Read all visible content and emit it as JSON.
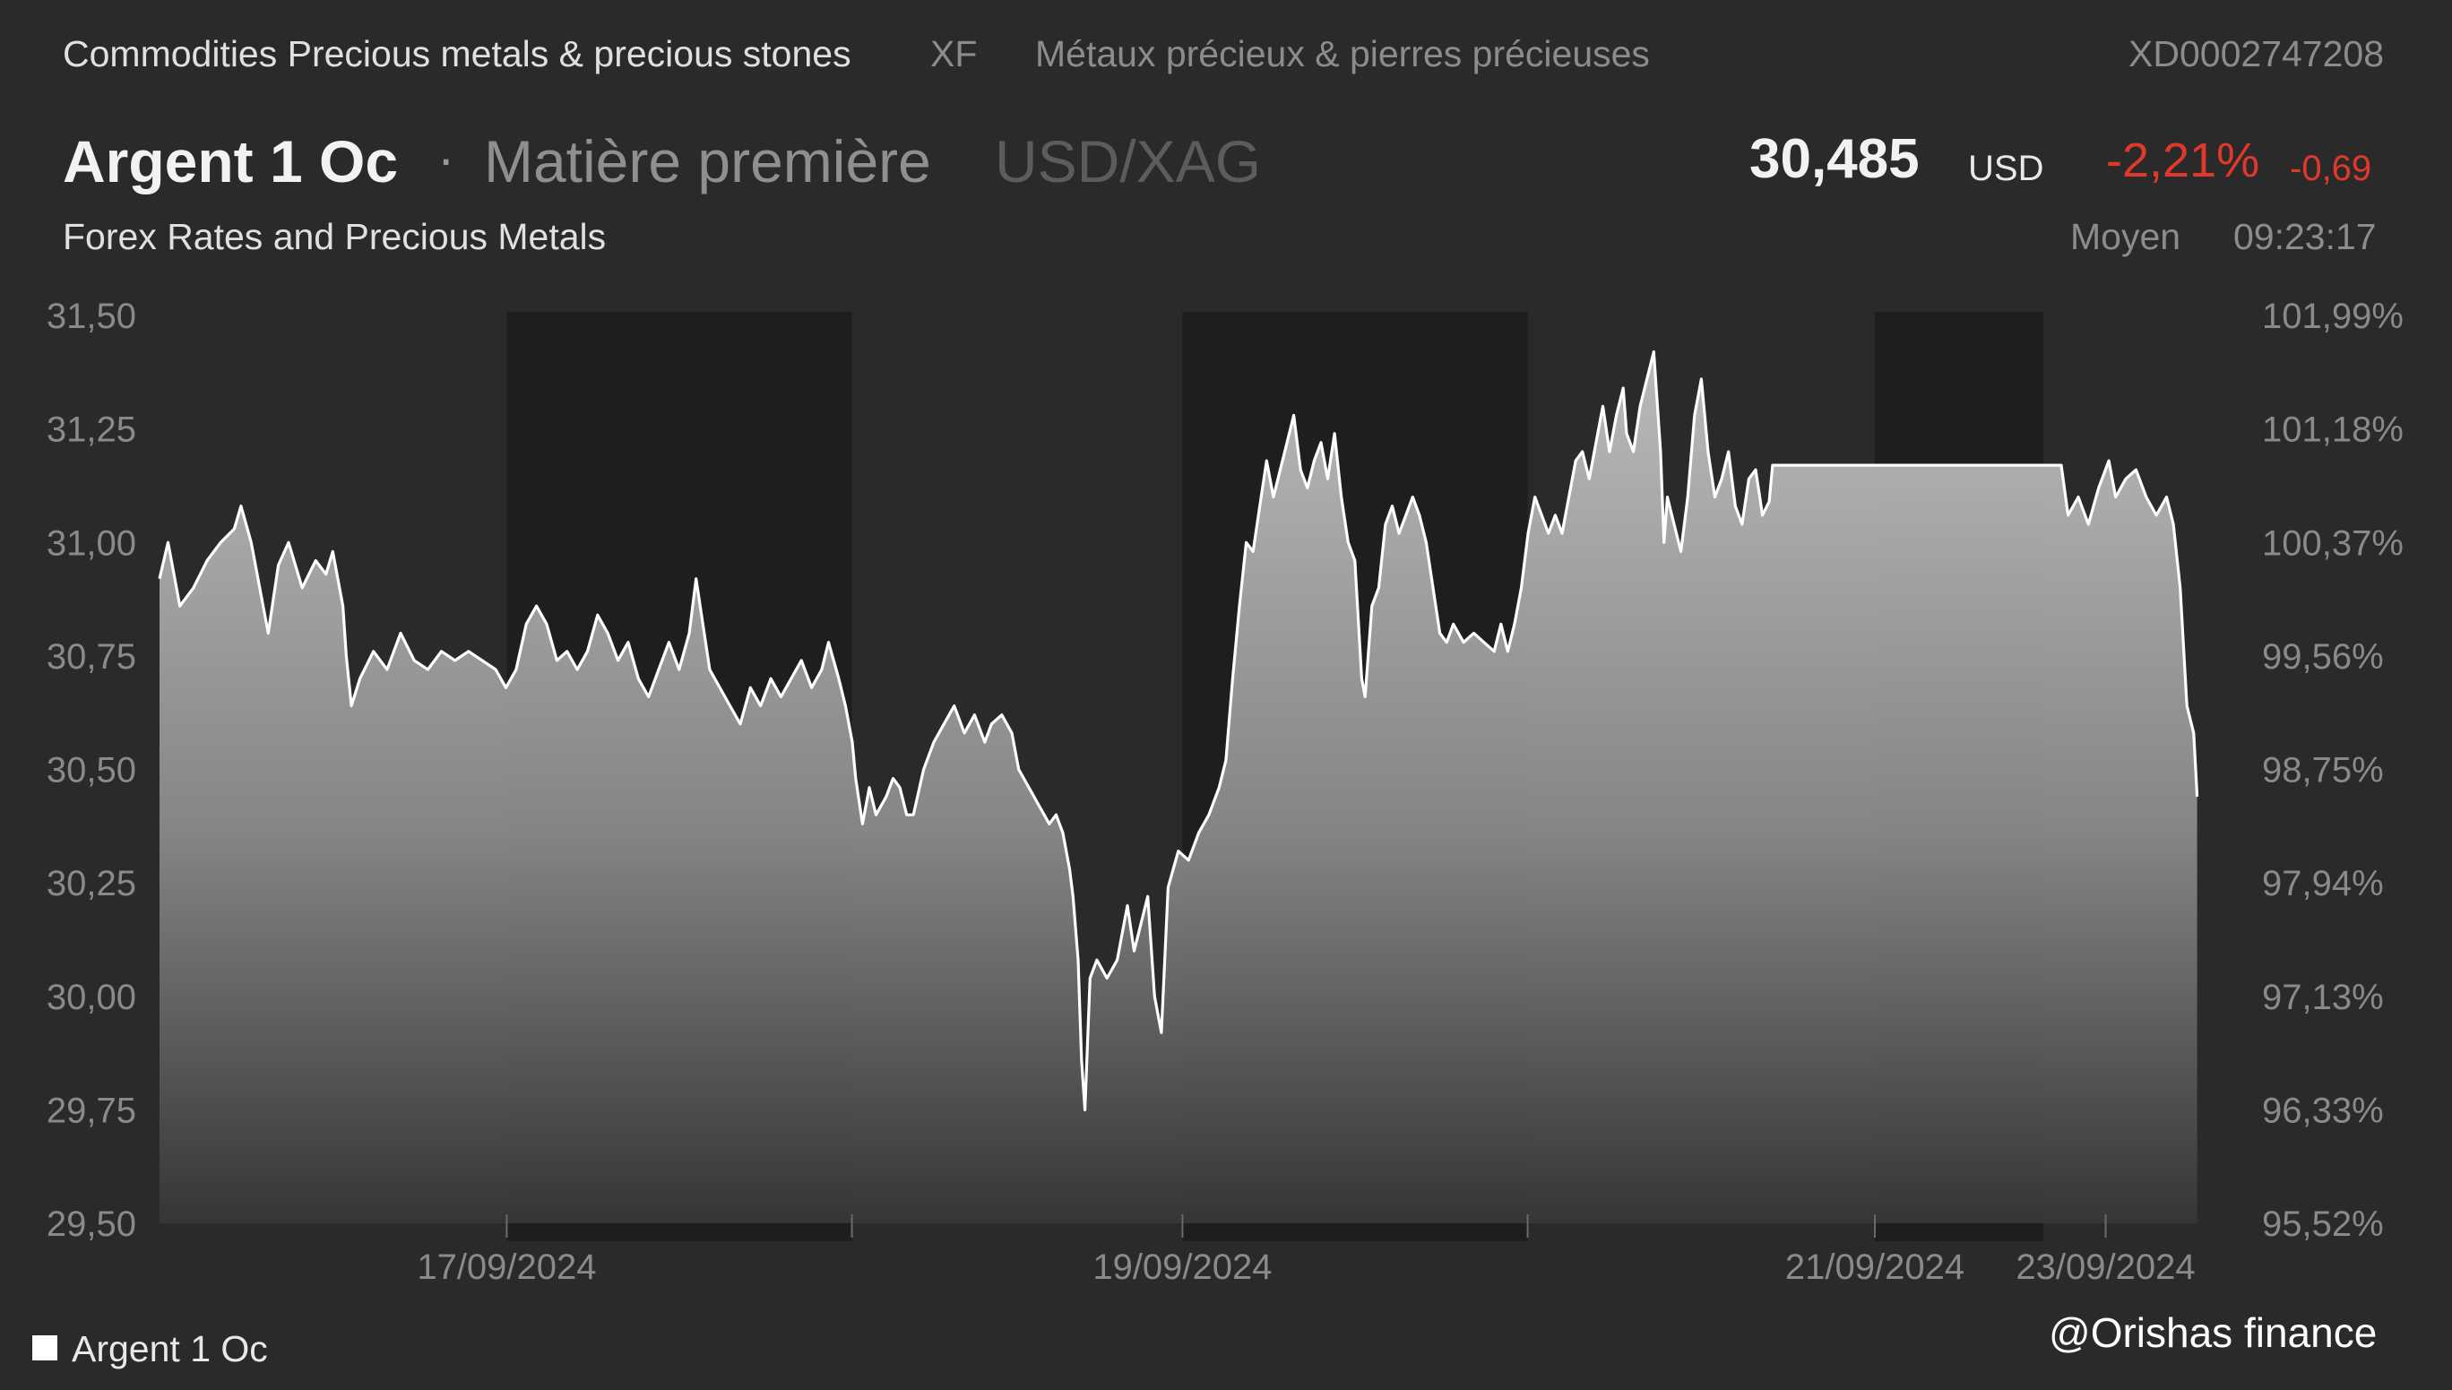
{
  "header": {
    "category": "Commodities Precious metals & precious stones",
    "exchange": "XF",
    "category_fr": "Métaux précieux & pierres précieuses",
    "isin": "XD0002747208"
  },
  "instrument": {
    "name": "Argent 1 Oc",
    "separator": "·",
    "type": "Matière première",
    "pair": "USD/XAG",
    "price": "30,485",
    "currency": "USD",
    "change_pct": "-2,21%",
    "change_abs": "-0,69",
    "provider": "Forex Rates and Precious Metals",
    "quote_type": "Moyen",
    "quote_time": "09:23:17"
  },
  "colors": {
    "background": "#2a2a2a",
    "negative": "#e0392b",
    "line": "#ffffff",
    "band": "#1e1e1e"
  },
  "chart_data": {
    "type": "area",
    "series": [
      {
        "name": "Argent 1 Oc",
        "color": "#ffffff"
      }
    ],
    "ylim": [
      29.5,
      31.5
    ],
    "y_ticks_left": [
      "31,50",
      "31,25",
      "31,00",
      "30,75",
      "30,50",
      "30,25",
      "30,00",
      "29,75",
      "29,50"
    ],
    "y_ticks_right": [
      "101,99%",
      "101,18%",
      "100,37%",
      "99,56%",
      "98,75%",
      "97,94%",
      "97,13%",
      "96,33%",
      "95,52%"
    ],
    "x_ticks": [
      "17/09/2024",
      "19/09/2024",
      "21/09/2024",
      "23/09/2024"
    ],
    "x_tick_positions": [
      0.167,
      0.492,
      0.825,
      0.936
    ],
    "extra_ticks": [
      0.333,
      0.658
    ],
    "bands": [
      [
        0.167,
        0.333
      ],
      [
        0.492,
        0.658
      ],
      [
        0.825,
        0.906
      ]
    ],
    "points": [
      [
        0.0,
        30.92
      ],
      [
        0.005,
        31.0
      ],
      [
        0.012,
        30.86
      ],
      [
        0.02,
        30.9
      ],
      [
        0.028,
        30.96
      ],
      [
        0.036,
        31.0
      ],
      [
        0.044,
        31.03
      ],
      [
        0.048,
        31.08
      ],
      [
        0.054,
        31.0
      ],
      [
        0.06,
        30.88
      ],
      [
        0.064,
        30.8
      ],
      [
        0.07,
        30.95
      ],
      [
        0.076,
        31.0
      ],
      [
        0.084,
        30.9
      ],
      [
        0.092,
        30.96
      ],
      [
        0.098,
        30.93
      ],
      [
        0.102,
        30.98
      ],
      [
        0.108,
        30.86
      ],
      [
        0.11,
        30.75
      ],
      [
        0.113,
        30.64
      ],
      [
        0.118,
        30.7
      ],
      [
        0.126,
        30.76
      ],
      [
        0.134,
        30.72
      ],
      [
        0.142,
        30.8
      ],
      [
        0.15,
        30.74
      ],
      [
        0.158,
        30.72
      ],
      [
        0.166,
        30.76
      ],
      [
        0.174,
        30.74
      ],
      [
        0.182,
        30.76
      ],
      [
        0.19,
        30.74
      ],
      [
        0.198,
        30.72
      ],
      [
        0.204,
        30.68
      ],
      [
        0.21,
        30.72
      ],
      [
        0.216,
        30.82
      ],
      [
        0.222,
        30.86
      ],
      [
        0.228,
        30.82
      ],
      [
        0.234,
        30.74
      ],
      [
        0.24,
        30.76
      ],
      [
        0.246,
        30.72
      ],
      [
        0.252,
        30.76
      ],
      [
        0.258,
        30.84
      ],
      [
        0.264,
        30.8
      ],
      [
        0.27,
        30.74
      ],
      [
        0.276,
        30.78
      ],
      [
        0.282,
        30.7
      ],
      [
        0.288,
        30.66
      ],
      [
        0.294,
        30.72
      ],
      [
        0.3,
        30.78
      ],
      [
        0.306,
        30.72
      ],
      [
        0.312,
        30.8
      ],
      [
        0.316,
        30.92
      ],
      [
        0.32,
        30.82
      ],
      [
        0.324,
        30.72
      ],
      [
        0.33,
        30.68
      ],
      [
        0.336,
        30.64
      ],
      [
        0.342,
        30.6
      ],
      [
        0.348,
        30.68
      ],
      [
        0.354,
        30.64
      ],
      [
        0.36,
        30.7
      ],
      [
        0.366,
        30.66
      ],
      [
        0.372,
        30.7
      ],
      [
        0.378,
        30.74
      ],
      [
        0.384,
        30.68
      ],
      [
        0.39,
        30.72
      ],
      [
        0.394,
        30.78
      ],
      [
        0.4,
        30.7
      ],
      [
        0.404,
        30.64
      ],
      [
        0.408,
        30.56
      ],
      [
        0.41,
        30.48
      ],
      [
        0.414,
        30.38
      ],
      [
        0.418,
        30.46
      ],
      [
        0.422,
        30.4
      ],
      [
        0.428,
        30.44
      ],
      [
        0.432,
        30.48
      ],
      [
        0.436,
        30.46
      ],
      [
        0.44,
        30.4
      ],
      [
        0.444,
        30.4
      ],
      [
        0.45,
        30.5
      ],
      [
        0.456,
        30.56
      ],
      [
        0.462,
        30.6
      ],
      [
        0.468,
        30.64
      ],
      [
        0.474,
        30.58
      ],
      [
        0.48,
        30.62
      ],
      [
        0.486,
        30.56
      ],
      [
        0.49,
        30.6
      ],
      [
        0.496,
        30.62
      ],
      [
        0.502,
        30.58
      ],
      [
        0.506,
        30.5
      ],
      [
        0.512,
        30.46
      ],
      [
        0.518,
        30.42
      ],
      [
        0.524,
        30.38
      ],
      [
        0.528,
        30.4
      ],
      [
        0.532,
        30.36
      ],
      [
        0.536,
        30.28
      ],
      [
        0.538,
        30.22
      ],
      [
        0.541,
        30.08
      ],
      [
        0.543,
        29.86
      ],
      [
        0.545,
        29.75
      ],
      [
        0.548,
        30.04
      ],
      [
        0.552,
        30.08
      ],
      [
        0.558,
        30.04
      ],
      [
        0.564,
        30.08
      ],
      [
        0.57,
        30.2
      ],
      [
        0.574,
        30.1
      ],
      [
        0.578,
        30.16
      ],
      [
        0.582,
        30.22
      ],
      [
        0.586,
        30.0
      ],
      [
        0.59,
        29.92
      ],
      [
        0.594,
        30.24
      ],
      [
        0.6,
        30.32
      ],
      [
        0.606,
        30.3
      ],
      [
        0.612,
        30.36
      ],
      [
        0.618,
        30.4
      ],
      [
        0.624,
        30.46
      ],
      [
        0.628,
        30.52
      ],
      [
        0.632,
        30.7
      ],
      [
        0.636,
        30.86
      ],
      [
        0.64,
        31.0
      ],
      [
        0.644,
        30.98
      ],
      [
        0.648,
        31.08
      ],
      [
        0.652,
        31.18
      ],
      [
        0.656,
        31.1
      ],
      [
        0.66,
        31.16
      ],
      [
        0.664,
        31.22
      ],
      [
        0.668,
        31.28
      ],
      [
        0.672,
        31.16
      ],
      [
        0.676,
        31.12
      ],
      [
        0.68,
        31.18
      ],
      [
        0.684,
        31.22
      ],
      [
        0.688,
        31.14
      ],
      [
        0.692,
        31.24
      ],
      [
        0.696,
        31.1
      ],
      [
        0.7,
        31.0
      ],
      [
        0.704,
        30.96
      ],
      [
        0.708,
        30.7
      ],
      [
        0.71,
        30.66
      ],
      [
        0.714,
        30.86
      ],
      [
        0.718,
        30.9
      ],
      [
        0.722,
        31.04
      ],
      [
        0.726,
        31.08
      ],
      [
        0.73,
        31.02
      ],
      [
        0.734,
        31.06
      ],
      [
        0.738,
        31.1
      ],
      [
        0.742,
        31.06
      ],
      [
        0.746,
        31.0
      ],
      [
        0.75,
        30.9
      ],
      [
        0.754,
        30.8
      ],
      [
        0.758,
        30.78
      ],
      [
        0.762,
        30.82
      ],
      [
        0.768,
        30.78
      ],
      [
        0.774,
        30.8
      ],
      [
        0.78,
        30.78
      ],
      [
        0.786,
        30.76
      ],
      [
        0.79,
        30.82
      ],
      [
        0.794,
        30.76
      ],
      [
        0.798,
        30.82
      ],
      [
        0.802,
        30.9
      ],
      [
        0.806,
        31.02
      ],
      [
        0.81,
        31.1
      ],
      [
        0.814,
        31.06
      ],
      [
        0.818,
        31.02
      ],
      [
        0.822,
        31.06
      ],
      [
        0.826,
        31.02
      ],
      [
        0.83,
        31.1
      ],
      [
        0.834,
        31.18
      ],
      [
        0.838,
        31.2
      ],
      [
        0.842,
        31.14
      ],
      [
        0.846,
        31.22
      ],
      [
        0.85,
        31.3
      ],
      [
        0.854,
        31.2
      ],
      [
        0.858,
        31.28
      ],
      [
        0.862,
        31.34
      ],
      [
        0.864,
        31.24
      ],
      [
        0.868,
        31.2
      ],
      [
        0.872,
        31.3
      ],
      [
        0.876,
        31.36
      ],
      [
        0.88,
        31.42
      ],
      [
        0.884,
        31.2
      ],
      [
        0.886,
        31.0
      ],
      [
        0.888,
        31.1
      ],
      [
        0.892,
        31.04
      ],
      [
        0.896,
        30.98
      ],
      [
        0.9,
        31.1
      ],
      [
        0.904,
        31.28
      ],
      [
        0.908,
        31.36
      ],
      [
        0.912,
        31.2
      ],
      [
        0.916,
        31.1
      ],
      [
        0.92,
        31.14
      ],
      [
        0.924,
        31.2
      ],
      [
        0.928,
        31.08
      ],
      [
        0.932,
        31.04
      ],
      [
        0.936,
        31.14
      ],
      [
        0.94,
        31.16
      ],
      [
        0.944,
        31.06
      ],
      [
        0.948,
        31.09
      ],
      [
        0.95,
        31.17
      ],
      [
        1.12,
        31.17
      ],
      [
        1.124,
        31.06
      ],
      [
        1.13,
        31.1
      ],
      [
        1.136,
        31.04
      ],
      [
        1.142,
        31.12
      ],
      [
        1.148,
        31.18
      ],
      [
        1.152,
        31.1
      ],
      [
        1.158,
        31.14
      ],
      [
        1.164,
        31.16
      ],
      [
        1.17,
        31.1
      ],
      [
        1.176,
        31.06
      ],
      [
        1.182,
        31.1
      ],
      [
        1.186,
        31.04
      ],
      [
        1.19,
        30.9
      ],
      [
        1.194,
        30.64
      ],
      [
        1.198,
        30.58
      ],
      [
        1.2,
        30.44
      ]
    ]
  },
  "watermark": "@Orishas finance"
}
